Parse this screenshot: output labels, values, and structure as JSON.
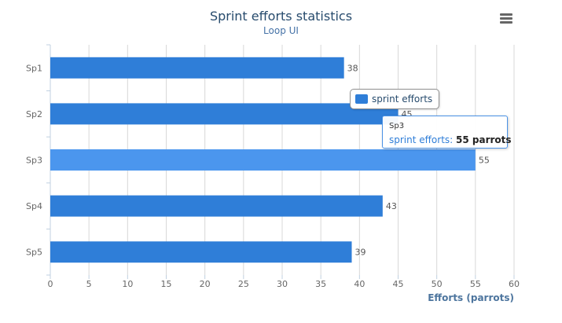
{
  "header": {
    "title": "Sprint efforts statistics",
    "subtitle": "Loop UI",
    "menu_icon": "hamburger-menu-icon"
  },
  "legend": {
    "label": "sprint efforts",
    "color": "#2f7ed8"
  },
  "tooltip": {
    "category": "Sp3",
    "series_label": "sprint efforts:",
    "value_text": "55 parrots"
  },
  "colors": {
    "bar": "#2f7ed8",
    "bar_hover": "#4b96ee",
    "grid": "#d8d8d8"
  },
  "chart_data": {
    "type": "bar",
    "orientation": "horizontal",
    "title": "Sprint efforts statistics",
    "subtitle": "Loop UI",
    "categories": [
      "Sp1",
      "Sp2",
      "Sp3",
      "Sp4",
      "Sp5"
    ],
    "series": [
      {
        "name": "sprint efforts",
        "values": [
          38,
          45,
          55,
          43,
          39
        ]
      }
    ],
    "data_labels": [
      "38",
      "45",
      "55",
      "43",
      "39"
    ],
    "highlighted_category": "Sp3",
    "xlabel": "Efforts (parrots)",
    "ylabel": "",
    "xlim": [
      0,
      60
    ],
    "x_ticks": [
      0,
      5,
      10,
      15,
      20,
      25,
      30,
      35,
      40,
      45,
      50,
      55,
      60
    ],
    "grid": true,
    "legend_position": "top-right"
  }
}
